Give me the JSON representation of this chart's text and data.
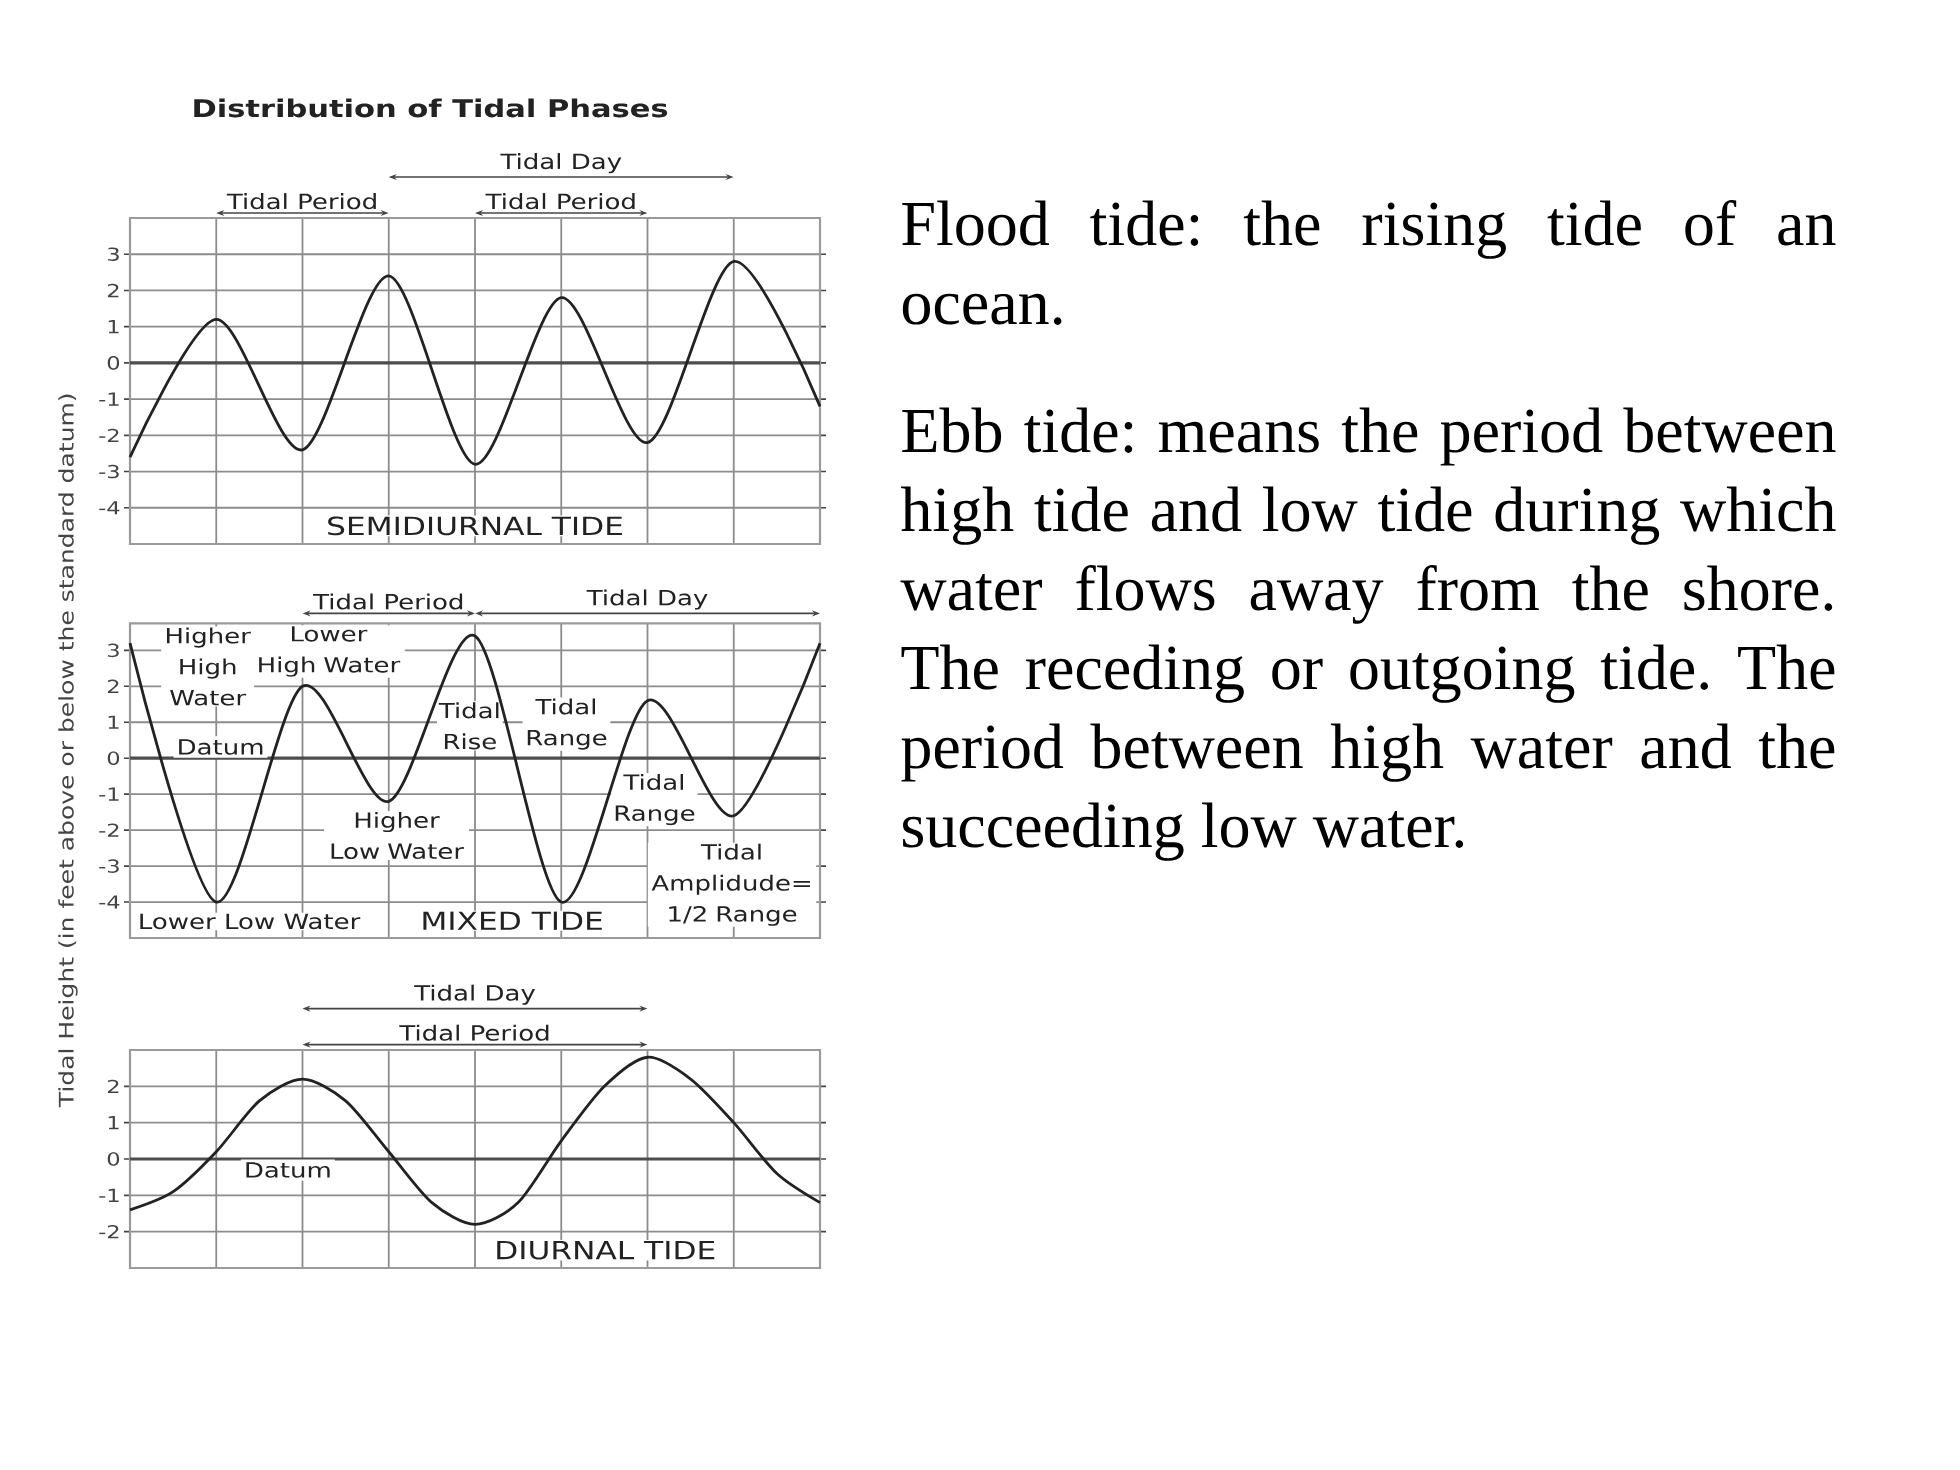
{
  "chart_data": [
    {
      "type": "line",
      "title": "Distribution of Tidal Phases",
      "categories": [
        null,
        null,
        null,
        null,
        null,
        null,
        null,
        null,
        null
      ],
      "series": [
        {
          "color": "#222222",
          "values": [
            -2.6,
            1.2,
            -2.4,
            2.4,
            -2.8,
            1.8,
            -2.2,
            2.8,
            -1.2
          ]
        }
      ],
      "ylim": [
        -5,
        4
      ],
      "yticks": [
        -4,
        -3,
        -2,
        -1,
        0,
        1,
        2,
        3
      ],
      "grid": true,
      "tick_labels": "y",
      "ref_lines": [
        {
          "axis": "y",
          "value": 0,
          "color": "#4d4d4d"
        }
      ],
      "annotations": [
        "SEMIDIURNAL TIDE",
        "Tidal Period",
        "Tidal Period",
        "Tidal Day"
      ]
    },
    {
      "type": "line",
      "ylabel": "Tidal Height (in feet above or below the standard datum)",
      "categories": [
        null,
        null,
        null,
        null,
        null,
        null,
        null,
        null,
        null
      ],
      "series": [
        {
          "color": "#222222",
          "values": [
            3.2,
            -4,
            2.0,
            -1.2,
            3.4,
            -4,
            1.6,
            -1.6,
            3.2
          ]
        }
      ],
      "ylim": [
        -5,
        3.75
      ],
      "yticks": [
        -4,
        -3,
        -2,
        -1,
        0,
        1,
        2,
        3
      ],
      "grid": true,
      "tick_labels": "y",
      "ref_lines": [
        {
          "axis": "y",
          "value": 0,
          "label": "Datum",
          "color": "#4d4d4d"
        }
      ],
      "annotations": [
        "MIXED TIDE",
        "Tidal Period",
        "Tidal Day",
        "Higher High Water",
        "Lower High Water",
        "Tidal Rise",
        "Tidal Range",
        "Tidal Range",
        "Higher Low Water",
        "Lower Low Water",
        "Tidal Amplidude= 1/2 Range"
      ]
    },
    {
      "type": "line",
      "categories": [
        null,
        null,
        null,
        null,
        null,
        null,
        null,
        null,
        null,
        null,
        null,
        null,
        null,
        null,
        null,
        null,
        null
      ],
      "series": [
        {
          "color": "#222222",
          "values": [
            -1.4,
            -0.9,
            0.2,
            1.6,
            2.2,
            1.6,
            0.2,
            -1.2,
            -1.8,
            -1.2,
            0.5,
            2.0,
            2.8,
            2.2,
            1.0,
            -0.4,
            -1.2
          ]
        }
      ],
      "ylim": [
        -3,
        3
      ],
      "yticks": [
        -2,
        -1,
        0,
        1,
        2
      ],
      "grid": true,
      "tick_labels": "y",
      "ref_lines": [
        {
          "axis": "y",
          "value": 0,
          "label": "Datum",
          "color": "#4d4d4d"
        }
      ],
      "annotations": [
        "DIURNAL TIDE",
        "Tidal Day",
        "Tidal Period"
      ]
    },
    {
      "type": "other",
      "annotations": [
        "Flood tide: the rising tide of an ocean.",
        "Ebb tide: means the period between high tide and low tide during which water flows away from the shore. The receding or outgoing tide. The period between high water and the succeeding low water."
      ]
    }
  ]
}
